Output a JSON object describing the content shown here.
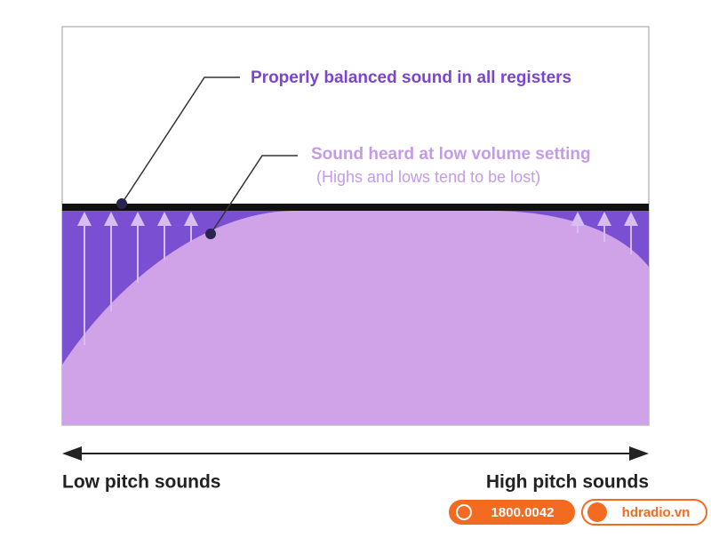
{
  "annotations": [
    {
      "label": "Properly balanced sound in all registers"
    },
    {
      "label": "Sound heard at low volume setting",
      "note": "(Highs and lows tend to be lost)"
    }
  ],
  "axis": {
    "left_label": "Low pitch sounds",
    "right_label": "High pitch sounds"
  },
  "contact": {
    "phone": "1800.0042",
    "website": "hdradio.vn"
  }
}
